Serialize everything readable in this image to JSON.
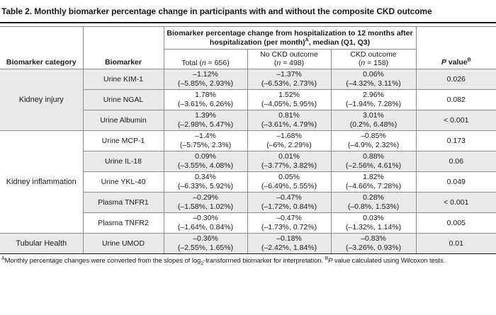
{
  "title": "Table 2. Monthly biomarker percentage change in participants with and without the composite CKD outcome",
  "header": {
    "span_line1": "Biomarker percentage change from hospitalization to 12 months after",
    "span_line2a": "hospitalization (per month)",
    "span_sup": "A",
    "span_line2b": ", median (Q1, Q3)",
    "category": "Biomarker category",
    "biomarker": "Biomarker",
    "total_a": "Total (",
    "total_n": "n",
    "total_b": " = 656)",
    "no_ckd_line1": "No CKD outcome",
    "no_ckd_a": "(",
    "no_ckd_n": "n",
    "no_ckd_b": " = 498)",
    "ckd_line1": "CKD outcome",
    "ckd_a": "(",
    "ckd_n": "n",
    "ckd_b": " = 158)",
    "pvalue_p": "P",
    "pvalue_rest": " value",
    "pvalue_sup": "B"
  },
  "categories": [
    "Kidney injury",
    "Kidney inflammation",
    "Tubular Health"
  ],
  "rows": [
    {
      "biomarker": "Urine KIM-1",
      "total": [
        "–1.12%",
        "(–5.85%, 2.93%)"
      ],
      "no_ckd": [
        "–1.37%",
        "(–6.53%, 2.73%)"
      ],
      "ckd": [
        "0.06%",
        "(–4.32%, 3.11%)"
      ],
      "p": "0.026"
    },
    {
      "biomarker": "Urine NGAL",
      "total": [
        "1.78%",
        "(–3.61%, 6.26%)"
      ],
      "no_ckd": [
        "1.52%",
        "(–4.05%, 5.95%)"
      ],
      "ckd": [
        "2.96%",
        "(–1.94%, 7.28%)"
      ],
      "p": "0.082"
    },
    {
      "biomarker": "Urine Albumin",
      "total": [
        "1.39%",
        "(–2.98%, 5.47%)"
      ],
      "no_ckd": [
        "0.81%",
        "(–3.61%, 4.79%)"
      ],
      "ckd": [
        "3.01%",
        "(0.2%, 6.48%)"
      ],
      "p": "< 0.001"
    },
    {
      "biomarker": "Urine MCP-1",
      "total": [
        "–1.4%",
        "(–5.75%, 2.3%)"
      ],
      "no_ckd": [
        "–1.68%",
        "(–6%, 2.29%)"
      ],
      "ckd": [
        "–0.85%",
        "(–4.9%, 2.32%)"
      ],
      "p": "0.173"
    },
    {
      "biomarker": "Urine IL-18",
      "total": [
        "0.09%",
        "(–3.55%, 4.08%)"
      ],
      "no_ckd": [
        "0.01%",
        "(–3.77%, 3.82%)"
      ],
      "ckd": [
        "0.88%",
        "(–2.56%, 4.61%)"
      ],
      "p": "0.06"
    },
    {
      "biomarker": "Urine YKL-40",
      "total": [
        "0.34%",
        "(–6.33%, 5.92%)"
      ],
      "no_ckd": [
        "0.05%",
        "(–6.49%, 5.55%)"
      ],
      "ckd": [
        "1.82%",
        "(–4.66%, 7.28%)"
      ],
      "p": "0.049"
    },
    {
      "biomarker": "Plasma TNFR1",
      "total": [
        "–0.29%",
        "(–1.58%, 1.02%)"
      ],
      "no_ckd": [
        "–0.47%",
        "(–1.72%, 0.84%)"
      ],
      "ckd": [
        "0.28%",
        "(–0.8%, 1.53%)"
      ],
      "p": "< 0.001"
    },
    {
      "biomarker": "Plasma TNFR2",
      "total": [
        "–0.30%",
        "(–1.64%, 0.84%)"
      ],
      "no_ckd": [
        "–0.47%",
        "(–1.73%, 0.72%)"
      ],
      "ckd": [
        "0.03%",
        "(–1.32%, 1.14%)"
      ],
      "p": "0.005"
    },
    {
      "biomarker": "Urine UMOD",
      "total": [
        "–0.36%",
        "(–2.55%, 1.65%)"
      ],
      "no_ckd": [
        "–0.18%",
        "(–2.42%, 1.84%)"
      ],
      "ckd": [
        "–0.83%",
        "(–3.26%, 0.93%)"
      ],
      "p": "0.01"
    }
  ],
  "footnote": {
    "sup_a": "A",
    "text1": "Monthly percentage changes were converted from the slopes of log",
    "sub2": "2",
    "text2": "-transformed biomarker for interpretation. ",
    "sup_b": "B",
    "p": "P",
    "text3": " value calculated using Wilcoxon tests."
  },
  "colors": {
    "shade": "#e9e9e9",
    "rule": "#1a1a1a",
    "grid": "#8c8c8c"
  }
}
